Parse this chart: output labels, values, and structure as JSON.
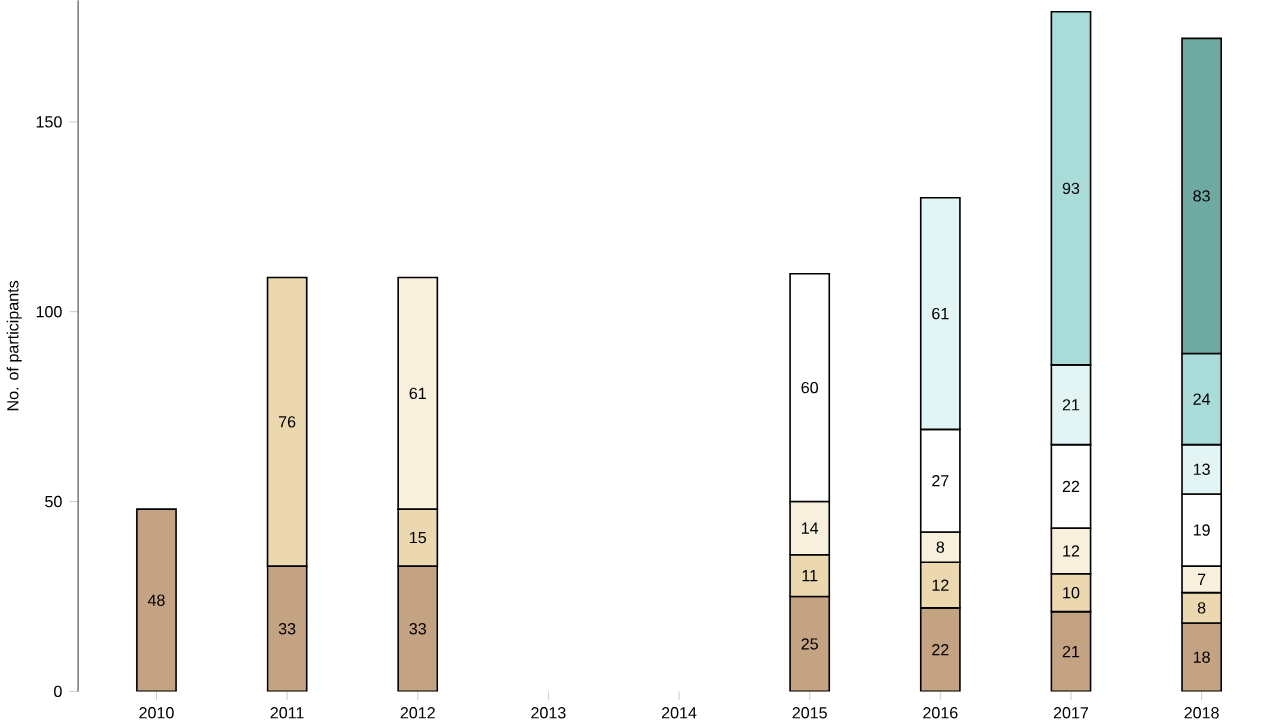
{
  "chart_data": {
    "type": "bar",
    "stacked": true,
    "ylabel": "No. of participants",
    "categories": [
      "2010",
      "2011",
      "2012",
      "2013",
      "2014",
      "2015",
      "2016",
      "2017",
      "2018"
    ],
    "series": [
      {
        "color": "#c4a382",
        "values": [
          48,
          33,
          33,
          null,
          null,
          25,
          22,
          21,
          18
        ]
      },
      {
        "color": "#ecd8ae",
        "values": [
          null,
          76,
          15,
          null,
          null,
          11,
          12,
          10,
          8
        ]
      },
      {
        "color": "#f8efdc",
        "values": [
          null,
          null,
          61,
          null,
          null,
          14,
          8,
          12,
          7
        ]
      },
      {
        "color": "#ffffff",
        "values": [
          null,
          null,
          null,
          null,
          null,
          60,
          27,
          22,
          19
        ]
      },
      {
        "color": "#e2f4f3",
        "values": [
          null,
          null,
          null,
          null,
          null,
          null,
          61,
          21,
          13
        ]
      },
      {
        "color": "#a9dcd8",
        "values": [
          null,
          null,
          null,
          null,
          null,
          null,
          null,
          93,
          24
        ]
      },
      {
        "color": "#6ea9a2",
        "values": [
          null,
          null,
          null,
          null,
          null,
          null,
          null,
          null,
          83
        ]
      }
    ],
    "ylim": [
      0,
      182
    ],
    "yticks": [
      0,
      50,
      100,
      150
    ],
    "data_labels": true,
    "grid": false
  }
}
